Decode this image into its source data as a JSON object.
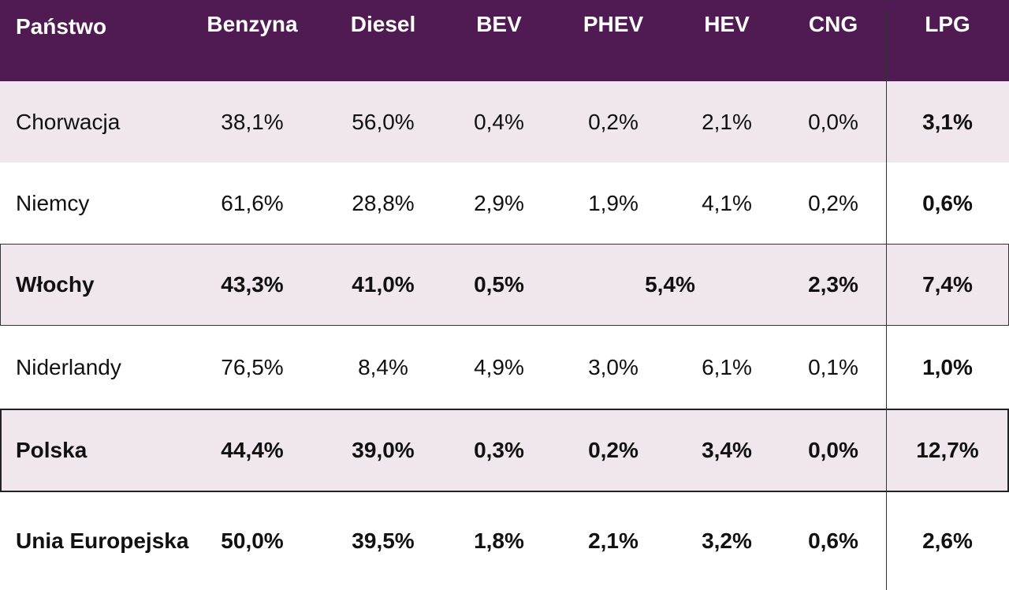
{
  "chart_data": {
    "type": "table",
    "columns": [
      "Państwo",
      "Benzyna",
      "Diesel",
      "BEV",
      "PHEV",
      "HEV",
      "CNG",
      "LPG"
    ],
    "rows": [
      {
        "country": "Chorwacja",
        "values": [
          "38,1%",
          "56,0%",
          "0,4%",
          "0,2%",
          "2,1%",
          "0,0%",
          "3,1%"
        ]
      },
      {
        "country": "Niemcy",
        "values": [
          "61,6%",
          "28,8%",
          "2,9%",
          "1,9%",
          "4,1%",
          "0,2%",
          "0,6%"
        ]
      },
      {
        "country": "Włochy",
        "values": [
          "43,3%",
          "41,0%",
          "0,5%",
          "5,4%",
          "2,3%",
          "7,4%"
        ],
        "merged_phev_hev": true
      },
      {
        "country": "Niderlandy",
        "values": [
          "76,5%",
          "8,4%",
          "4,9%",
          "3,0%",
          "6,1%",
          "0,1%",
          "1,0%"
        ]
      },
      {
        "country": "Polska",
        "values": [
          "44,4%",
          "39,0%",
          "0,3%",
          "0,2%",
          "3,4%",
          "0,0%",
          "12,7%"
        ]
      },
      {
        "country": "Unia Europejska",
        "values": [
          "50,0%",
          "39,5%",
          "1,8%",
          "2,1%",
          "3,2%",
          "0,6%",
          "2,6%"
        ]
      }
    ],
    "colors": {
      "header_bg": "#4f1b52",
      "header_text": "#ffffff",
      "shaded_row": "#efe6ee"
    }
  }
}
